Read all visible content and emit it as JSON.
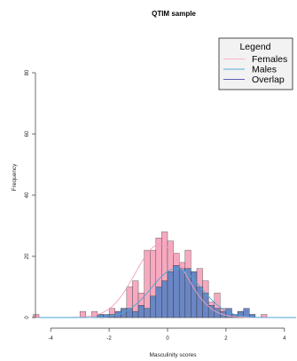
{
  "chart_data": {
    "type": "bar",
    "title": "QTIM sample",
    "xlabel": "Masculinity scores",
    "ylabel": "Frequency",
    "xlim": [
      -4.4,
      4.4
    ],
    "ylim": [
      0,
      80
    ],
    "x_ticks": [
      -4,
      -2,
      0,
      2,
      4
    ],
    "y_ticks": [
      0,
      20,
      40,
      60,
      80
    ],
    "bin_width": 0.2,
    "bin_edges": [
      -3.0,
      -2.8,
      -2.6,
      -2.4,
      -2.2,
      -2.0,
      -1.8,
      -1.6,
      -1.4,
      -1.2,
      -1.0,
      -0.8,
      -0.6,
      -0.4,
      -0.2,
      0.0,
      0.2,
      0.4,
      0.6,
      0.8,
      1.0,
      1.2,
      1.4,
      1.6,
      1.8,
      2.0,
      2.2,
      2.4,
      2.6,
      2.8,
      3.0
    ],
    "series": [
      {
        "name": "Females",
        "color": "#f7a9c0",
        "line_color": "#f2a0b8",
        "values": [
          2,
          0,
          2,
          1,
          0,
          3,
          2,
          3,
          10,
          12,
          8,
          22,
          22,
          26,
          28,
          25,
          21,
          18,
          22,
          14,
          16,
          12,
          5,
          8,
          3,
          2,
          1,
          2,
          0,
          1
        ]
      },
      {
        "name": "Males",
        "color": "#6a86c4",
        "line_color": "#4da6d6",
        "values": [
          0,
          0,
          0,
          1,
          1,
          1,
          2,
          3,
          3,
          2,
          4,
          3,
          7,
          10,
          12,
          15,
          17,
          16,
          16,
          15,
          10,
          8,
          4,
          3,
          2,
          3,
          1,
          2,
          3,
          1
        ]
      }
    ],
    "extra_bars": [
      {
        "x0": -4.6,
        "x1": -4.4,
        "value": 1
      },
      {
        "x0": 3.2,
        "x1": 3.4,
        "value": 1
      }
    ],
    "overlap_color": "#5b77b8",
    "legend": {
      "title": "Legend",
      "placement": "top-right",
      "entries": [
        {
          "label": "Females",
          "color": "#f7b6c8"
        },
        {
          "label": "Males",
          "color": "#5aa9d8"
        },
        {
          "label": "Overlap",
          "color": "#5a5fb0"
        }
      ]
    },
    "grid": false,
    "density_curves": true
  }
}
